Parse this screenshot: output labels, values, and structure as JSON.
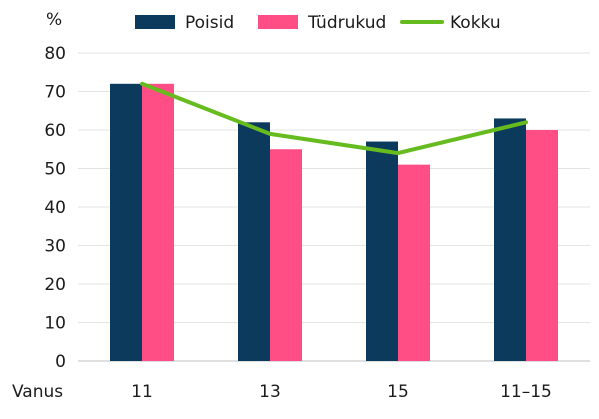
{
  "chart_data": {
    "type": "bar",
    "categories": [
      "11",
      "13",
      "15",
      "11–15"
    ],
    "x_axis_label": "Vanus",
    "y_unit": "%",
    "ylim": [
      0,
      80
    ],
    "yticks": [
      0,
      10,
      20,
      30,
      40,
      50,
      60,
      70,
      80
    ],
    "grid": true,
    "legend_position": "top",
    "series": [
      {
        "name": "Poisid",
        "type": "bar",
        "color": "#0b3a5c",
        "values": [
          72,
          62,
          57,
          63
        ]
      },
      {
        "name": "Tüdrukud",
        "type": "bar",
        "color": "#ff4d85",
        "values": [
          72,
          55,
          51,
          60
        ]
      },
      {
        "name": "Kokku",
        "type": "line",
        "color": "#66bb1f",
        "values": [
          72,
          59,
          54,
          62
        ]
      }
    ]
  }
}
